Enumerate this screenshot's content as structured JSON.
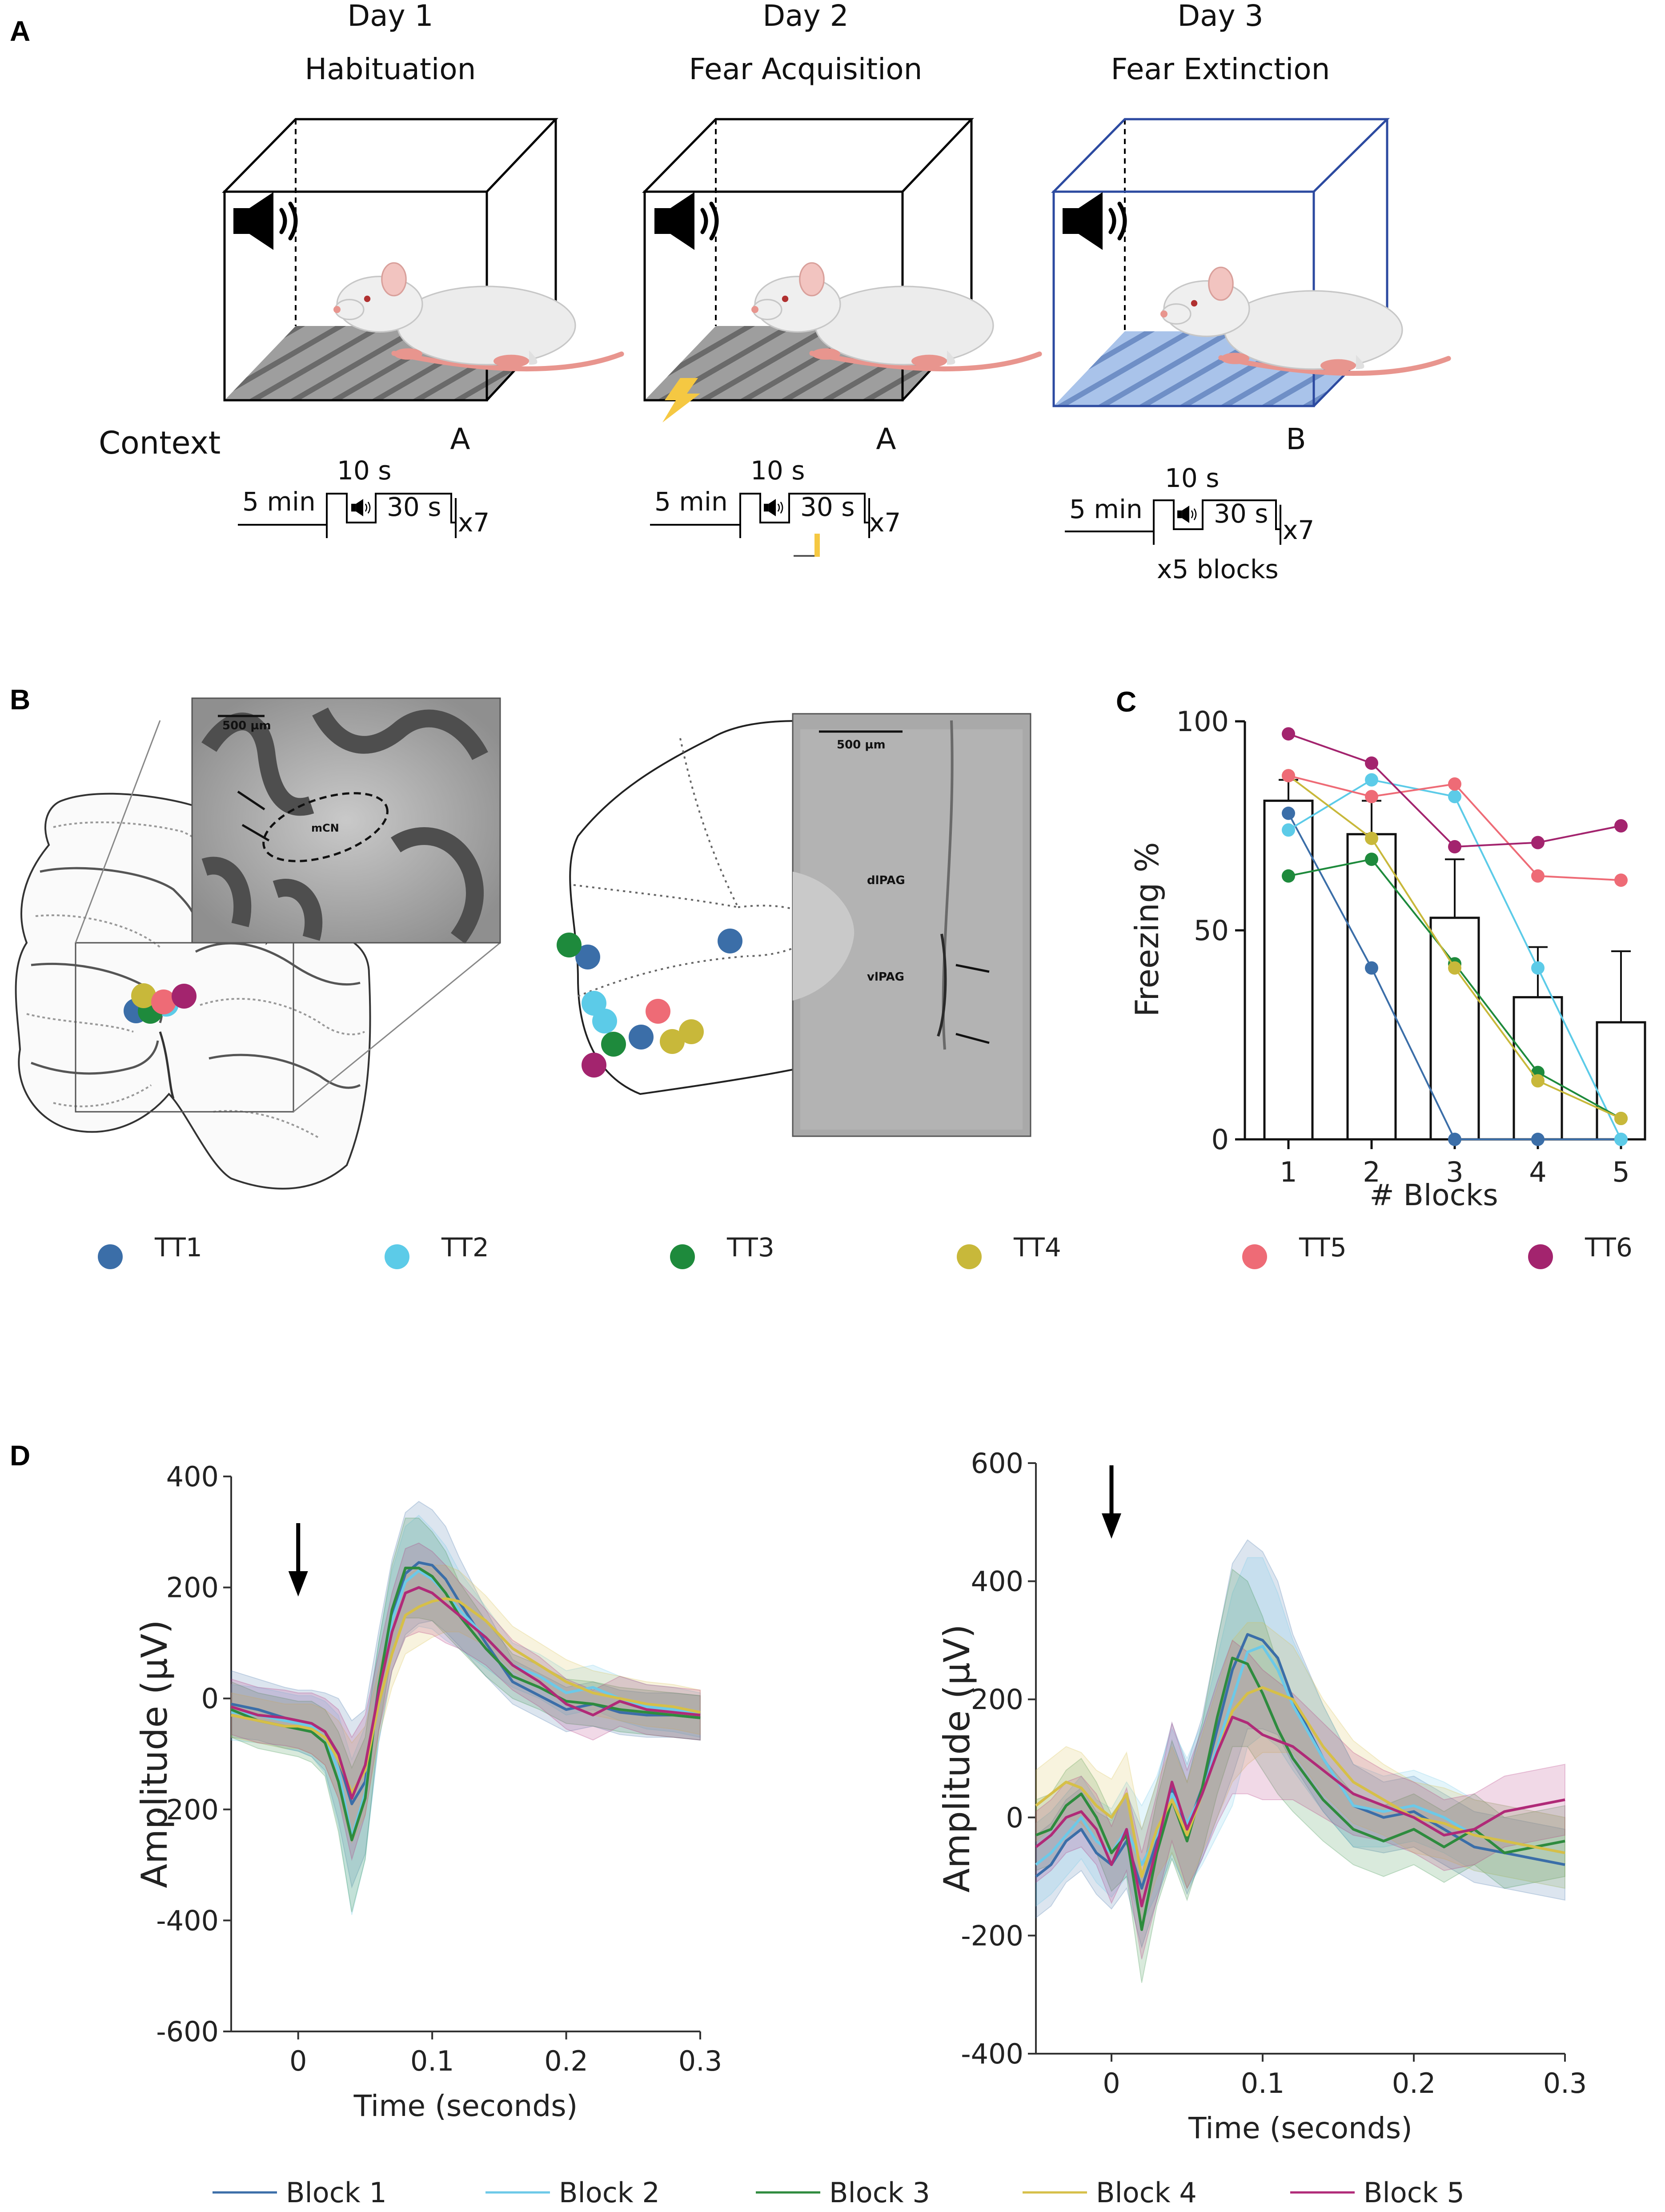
{
  "panel_a": {
    "letter": "A",
    "context_label": "Context",
    "days": [
      {
        "day": "Day 1",
        "phase": "Habituation",
        "context": "A",
        "pre": "5 min",
        "tone": "10 s",
        "iti": "30 s",
        "reps": "x7",
        "blocks": ""
      },
      {
        "day": "Day 2",
        "phase": "Fear Acquisition",
        "context": "A",
        "pre": "5 min",
        "tone": "10 s",
        "iti": "30 s",
        "reps": "x7",
        "blocks": ""
      },
      {
        "day": "Day 3",
        "phase": "Fear Extinction",
        "context": "B",
        "pre": "5 min",
        "tone": "10 s",
        "iti": "30 s",
        "reps": "x7",
        "blocks": "x5 blocks"
      }
    ]
  },
  "panel_b": {
    "letter": "B",
    "cerebellum": {
      "scale": "500 µm",
      "region": "mCN"
    },
    "pag": {
      "scale": "500 µm",
      "dorsal": "dlPAG",
      "ventral": "vlPAG"
    },
    "tetrodes": [
      {
        "label": "TT1",
        "color": "#3b6ea8"
      },
      {
        "label": "TT2",
        "color": "#5ccbe8"
      },
      {
        "label": "TT3",
        "color": "#1e8a3c"
      },
      {
        "label": "TT4",
        "color": "#c8b83a"
      },
      {
        "label": "TT5",
        "color": "#ee6b76"
      },
      {
        "label": "TT6",
        "color": "#a3246e"
      }
    ]
  },
  "panel_d": {
    "letter": "D",
    "legend": [
      {
        "label": "Block 1",
        "color": "#3b6ea8"
      },
      {
        "label": "Block 2",
        "color": "#6cc9e8"
      },
      {
        "label": "Block 3",
        "color": "#2e8b3e"
      },
      {
        "label": "Block 4",
        "color": "#d6bf48"
      },
      {
        "label": "Block 5",
        "color": "#b02a78"
      }
    ]
  },
  "chart_data": [
    {
      "id": "freezing",
      "panel": "C",
      "type": "bar",
      "categories": [
        "1",
        "2",
        "3",
        "4",
        "5"
      ],
      "values": [
        81,
        73,
        53,
        34,
        28
      ],
      "errors": [
        5,
        8,
        14,
        12,
        17
      ],
      "xlabel": "# Blocks",
      "ylabel": "Freezing %",
      "ylim": [
        0,
        100
      ],
      "yticks": [
        "0",
        "50",
        "100"
      ],
      "series": [
        {
          "name": "TT1",
          "color": "#3b6ea8",
          "values": [
            78,
            41,
            0,
            0,
            0
          ]
        },
        {
          "name": "TT2",
          "color": "#5ccbe8",
          "values": [
            74,
            86,
            82,
            41,
            0
          ]
        },
        {
          "name": "TT3",
          "color": "#1e8a3c",
          "values": [
            63,
            67,
            42,
            16,
            5
          ]
        },
        {
          "name": "TT4",
          "color": "#c8b83a",
          "values": [
            87,
            72,
            41,
            14,
            5
          ]
        },
        {
          "name": "TT5",
          "color": "#ee6b76",
          "values": [
            87,
            82,
            85,
            63,
            62
          ]
        },
        {
          "name": "TT6",
          "color": "#a3246e",
          "values": [
            97,
            90,
            70,
            71,
            75
          ]
        }
      ]
    },
    {
      "id": "erp_left",
      "panel": "D",
      "type": "line",
      "xlabel": "Time (seconds)",
      "ylabel": "Amplitude (µV)",
      "xlim": [
        -0.05,
        0.3
      ],
      "ylim": [
        -600,
        400
      ],
      "xticks": [
        "0",
        "0.1",
        "0.2",
        "0.3"
      ],
      "yticks": [
        "-600",
        "-400",
        "-200",
        "0",
        "200",
        "400"
      ],
      "stimulus_time": 0,
      "x": [
        -0.05,
        -0.03,
        -0.01,
        0.0,
        0.01,
        0.02,
        0.03,
        0.04,
        0.05,
        0.06,
        0.07,
        0.08,
        0.09,
        0.1,
        0.11,
        0.12,
        0.14,
        0.16,
        0.18,
        0.2,
        0.22,
        0.24,
        0.26,
        0.28,
        0.3
      ],
      "series": [
        {
          "name": "Block 1",
          "color": "#3b6ea8",
          "values": [
            -10,
            -20,
            -35,
            -40,
            -45,
            -60,
            -110,
            -190,
            -150,
            20,
            150,
            225,
            245,
            240,
            215,
            175,
            100,
            30,
            5,
            -20,
            -10,
            -25,
            -30,
            -30,
            -35
          ],
          "err": [
            60,
            55,
            55,
            55,
            60,
            70,
            110,
            150,
            130,
            100,
            100,
            110,
            110,
            100,
            95,
            80,
            60,
            40,
            40,
            40,
            40,
            40,
            40,
            40,
            40
          ]
        },
        {
          "name": "Block 2",
          "color": "#6cc9e8",
          "values": [
            -25,
            -30,
            -40,
            -45,
            -50,
            -70,
            -130,
            -250,
            -170,
            10,
            140,
            210,
            230,
            215,
            190,
            160,
            110,
            60,
            40,
            10,
            20,
            0,
            -15,
            -20,
            -30
          ],
          "err": [
            50,
            50,
            50,
            50,
            55,
            65,
            100,
            140,
            120,
            90,
            90,
            100,
            100,
            90,
            85,
            70,
            55,
            40,
            40,
            40,
            40,
            40,
            40,
            40,
            40
          ]
        },
        {
          "name": "Block 3",
          "color": "#2e8b3e",
          "values": [
            -20,
            -40,
            -50,
            -55,
            -60,
            -80,
            -150,
            -255,
            -180,
            20,
            160,
            235,
            235,
            220,
            190,
            150,
            90,
            40,
            20,
            -5,
            -10,
            -20,
            -25,
            -30,
            -35
          ],
          "err": [
            50,
            50,
            50,
            50,
            55,
            60,
            90,
            130,
            110,
            80,
            80,
            90,
            90,
            80,
            75,
            60,
            50,
            40,
            40,
            40,
            40,
            40,
            40,
            40,
            40
          ]
        },
        {
          "name": "Block 4",
          "color": "#d6bf48",
          "values": [
            -30,
            -40,
            -50,
            -50,
            -55,
            -70,
            -110,
            -170,
            -130,
            -10,
            80,
            150,
            165,
            175,
            180,
            175,
            140,
            90,
            60,
            30,
            10,
            0,
            -10,
            -15,
            -25
          ],
          "err": [
            40,
            40,
            40,
            40,
            45,
            50,
            70,
            90,
            80,
            60,
            60,
            70,
            70,
            65,
            60,
            55,
            45,
            40,
            40,
            40,
            40,
            40,
            40,
            40,
            40
          ]
        },
        {
          "name": "Block 5",
          "color": "#b02a78",
          "values": [
            -15,
            -30,
            -35,
            -40,
            -45,
            -60,
            -100,
            -180,
            -120,
            10,
            120,
            190,
            200,
            190,
            170,
            150,
            110,
            60,
            30,
            -10,
            -30,
            -5,
            -20,
            -25,
            -30
          ],
          "err": [
            50,
            50,
            50,
            50,
            55,
            60,
            80,
            110,
            90,
            70,
            70,
            80,
            80,
            75,
            70,
            60,
            50,
            45,
            45,
            45,
            45,
            45,
            45,
            45,
            45
          ]
        }
      ]
    },
    {
      "id": "erp_right",
      "panel": "D",
      "type": "line",
      "xlabel": "Time (seconds)",
      "ylabel": "Amplitude (µV)",
      "xlim": [
        -0.05,
        0.3
      ],
      "ylim": [
        -400,
        600
      ],
      "xticks": [
        "0",
        "0.1",
        "0.2",
        "0.3"
      ],
      "yticks": [
        "-400",
        "-200",
        "0",
        "200",
        "400",
        "600"
      ],
      "stimulus_time": 0,
      "x": [
        -0.05,
        -0.04,
        -0.03,
        -0.02,
        -0.01,
        0.0,
        0.01,
        0.02,
        0.03,
        0.04,
        0.05,
        0.06,
        0.07,
        0.08,
        0.09,
        0.1,
        0.11,
        0.12,
        0.14,
        0.16,
        0.18,
        0.2,
        0.22,
        0.24,
        0.26,
        0.28,
        0.3
      ],
      "series": [
        {
          "name": "Block 1",
          "color": "#3b6ea8",
          "values": [
            -100,
            -80,
            -40,
            -20,
            -60,
            -80,
            -40,
            -120,
            -40,
            50,
            -20,
            50,
            150,
            250,
            310,
            300,
            270,
            200,
            100,
            20,
            0,
            10,
            -20,
            -50,
            -60,
            -70,
            -80
          ],
          "err": [
            70,
            70,
            70,
            70,
            70,
            75,
            80,
            100,
            100,
            110,
            110,
            120,
            150,
            180,
            160,
            150,
            130,
            110,
            90,
            70,
            60,
            60,
            60,
            60,
            60,
            60,
            60
          ]
        },
        {
          "name": "Block 2",
          "color": "#6cc9e8",
          "values": [
            -80,
            -60,
            -30,
            0,
            -40,
            -60,
            -20,
            -80,
            -30,
            40,
            -10,
            40,
            120,
            200,
            280,
            290,
            250,
            190,
            100,
            20,
            10,
            20,
            0,
            -30,
            -40,
            -50,
            -60
          ],
          "err": [
            70,
            70,
            70,
            70,
            70,
            75,
            80,
            100,
            100,
            110,
            110,
            120,
            150,
            180,
            160,
            150,
            130,
            110,
            90,
            70,
            60,
            60,
            60,
            60,
            60,
            60,
            60
          ]
        },
        {
          "name": "Block 3",
          "color": "#2e8b3e",
          "values": [
            -30,
            -20,
            20,
            40,
            0,
            -60,
            -30,
            -190,
            -60,
            30,
            -40,
            50,
            170,
            270,
            260,
            210,
            150,
            100,
            30,
            -20,
            -40,
            -20,
            -50,
            -20,
            -60,
            -50,
            -40
          ],
          "err": [
            60,
            60,
            60,
            60,
            60,
            65,
            70,
            90,
            90,
            100,
            100,
            110,
            130,
            150,
            140,
            130,
            110,
            90,
            70,
            60,
            60,
            60,
            60,
            60,
            60,
            60,
            60
          ]
        },
        {
          "name": "Block 4",
          "color": "#d6bf48",
          "values": [
            20,
            40,
            60,
            50,
            20,
            0,
            40,
            -100,
            -20,
            30,
            -30,
            40,
            110,
            180,
            210,
            220,
            210,
            200,
            120,
            60,
            30,
            0,
            -10,
            -30,
            -40,
            -50,
            -60
          ],
          "err": [
            60,
            60,
            60,
            60,
            60,
            65,
            70,
            80,
            80,
            90,
            90,
            100,
            110,
            120,
            120,
            110,
            100,
            90,
            80,
            70,
            60,
            60,
            60,
            60,
            60,
            60,
            60
          ]
        },
        {
          "name": "Block 5",
          "color": "#b02a78",
          "values": [
            -50,
            -30,
            0,
            10,
            -20,
            -80,
            -20,
            -150,
            -50,
            60,
            -20,
            40,
            110,
            170,
            160,
            140,
            130,
            120,
            80,
            40,
            20,
            0,
            -30,
            -20,
            10,
            20,
            30
          ],
          "err": [
            60,
            60,
            60,
            60,
            60,
            65,
            70,
            90,
            90,
            100,
            100,
            110,
            120,
            130,
            120,
            110,
            100,
            90,
            80,
            70,
            60,
            60,
            60,
            60,
            60,
            60,
            60
          ]
        }
      ]
    }
  ]
}
